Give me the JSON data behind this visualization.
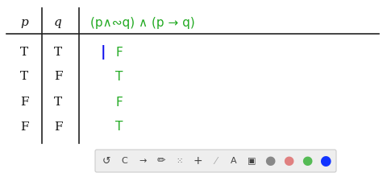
{
  "title": "(p∧∾q) ∧ (p → q)",
  "col_p": [
    "T",
    "T",
    "F",
    "F"
  ],
  "col_q": [
    "T",
    "F",
    "T",
    "F"
  ],
  "col_result": [
    "F",
    "T",
    "F",
    "T"
  ],
  "p_header": "p",
  "q_header": "q",
  "bg_color": "#ffffff",
  "header_color": "#22aa22",
  "result_color": "#22aa22",
  "blue_bar_color": "#1111ee",
  "pq_color": "#111111",
  "line_color": "#222222",
  "toolbar_bg": "#eeeeee",
  "toolbar_border": "#cccccc",
  "gray_circle": "#888888",
  "pink_circle": "#e08080",
  "green_circle": "#55bb55",
  "blue_circle": "#1133ff",
  "icon_color": "#444444"
}
